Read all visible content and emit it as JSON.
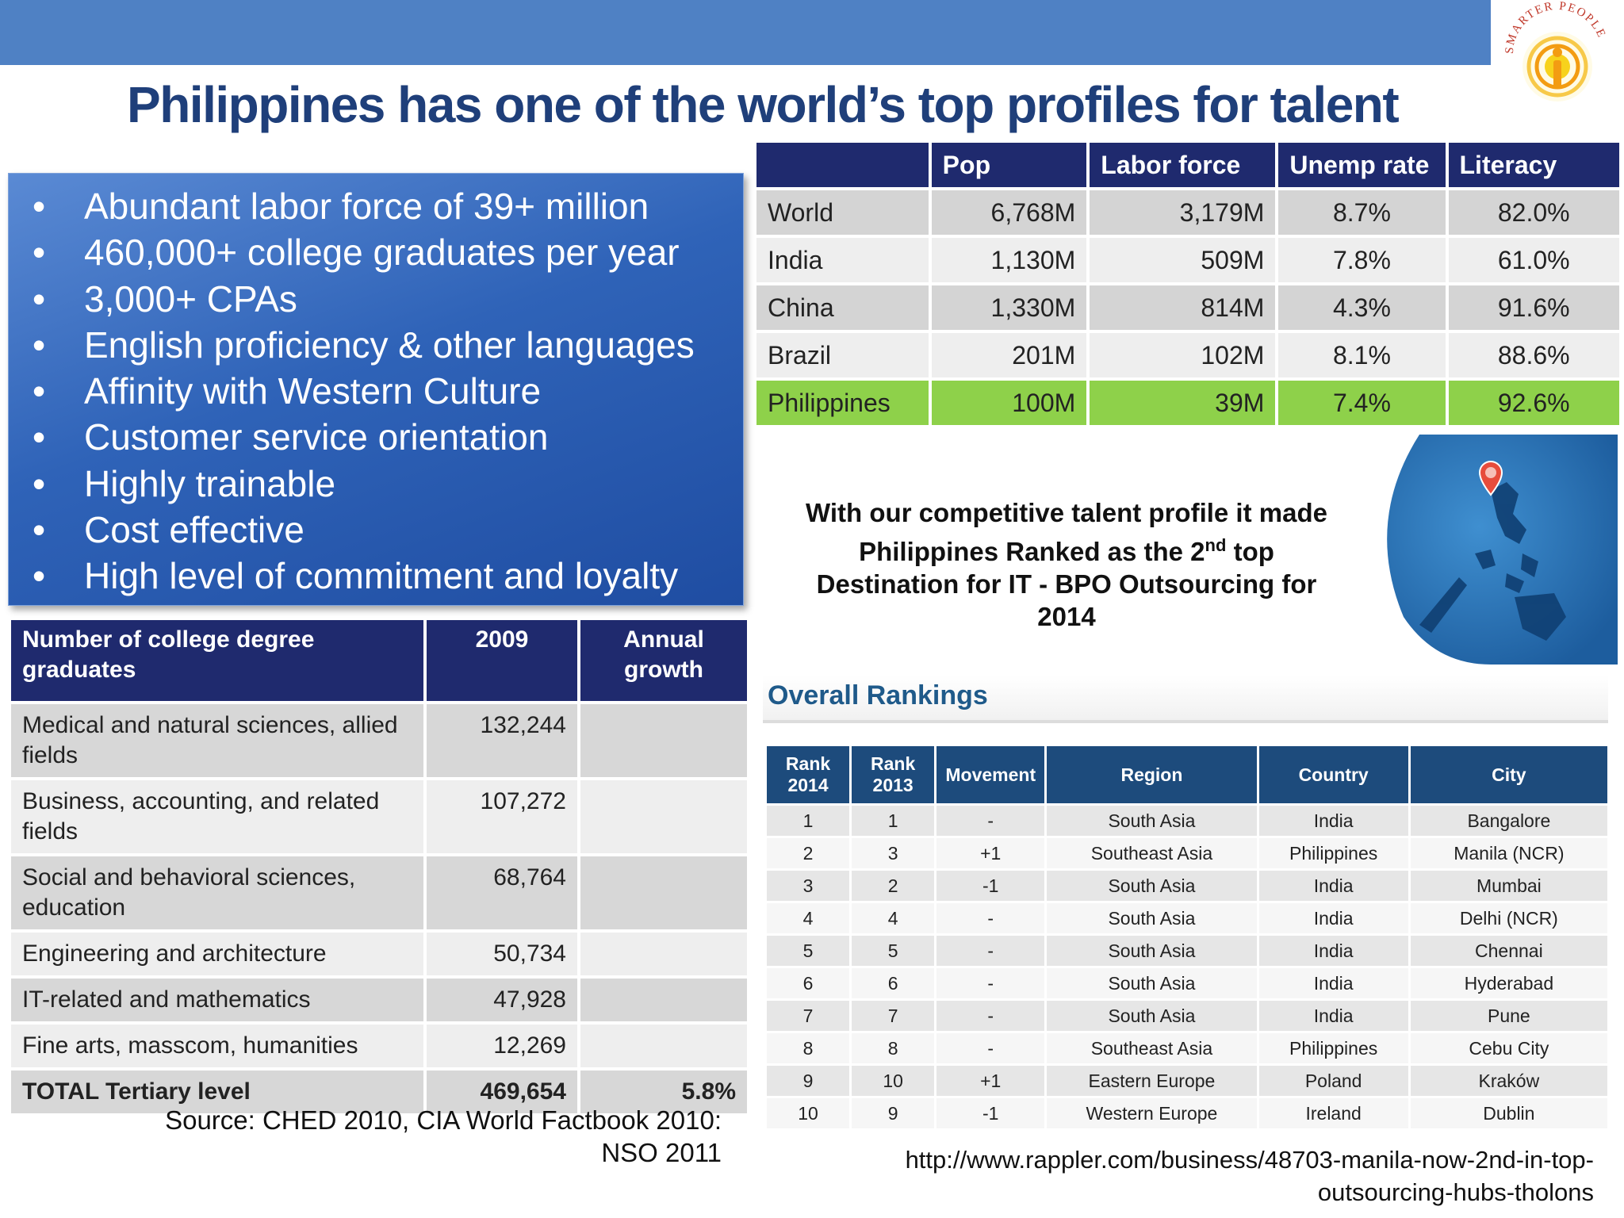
{
  "header": {
    "title": "Philippines has one of the world’s top profiles for talent"
  },
  "logo": {
    "text": "SMARTER PEOPLE",
    "icon": "lightbulb-info-icon",
    "colors": {
      "ring": "#f39c12",
      "center": "#f7d21c",
      "text": "#c0392b"
    }
  },
  "bullets": {
    "marker": "•",
    "items": [
      "Abundant labor force of 39+ million",
      "460,000+ college graduates per year",
      "3,000+ CPAs",
      "English proficiency & other languages",
      "Affinity with Western Culture",
      "Customer service orientation",
      "Highly trainable",
      "Cost effective",
      "High level of commitment and loyalty"
    ]
  },
  "country_table": {
    "headers": [
      "",
      "Pop",
      "Labor force",
      "Unemp rate",
      "Literacy"
    ],
    "rows": [
      [
        "World",
        "6,768M",
        "3,179M",
        "8.7%",
        "82.0%"
      ],
      [
        "India",
        "1,130M",
        "509M",
        "7.8%",
        "61.0%"
      ],
      [
        "China",
        "1,330M",
        "814M",
        "4.3%",
        "91.6%"
      ],
      [
        "Brazil",
        "201M",
        "102M",
        "8.1%",
        "88.6%"
      ],
      [
        "Philippines",
        "100M",
        "39M",
        "7.4%",
        "92.6%"
      ]
    ],
    "highlight_color": "#8ed14a"
  },
  "callout": {
    "line1": "With our competitive talent profile it made",
    "line2_pre": "Philippines Ranked as the 2",
    "line2_sup": "nd",
    "line2_post": " top",
    "line3": "Destination for IT - BPO Outsourcing for",
    "line4": "2014"
  },
  "map": {
    "icon": "philippines-map-pin-icon"
  },
  "rankings": {
    "title": "Overall Rankings",
    "headers": [
      "Rank 2014",
      "Rank 2013",
      "Movement",
      "Region",
      "Country",
      "City"
    ],
    "rows": [
      [
        "1",
        "1",
        "-",
        "South Asia",
        "India",
        "Bangalore"
      ],
      [
        "2",
        "3",
        "+1",
        "Southeast Asia",
        "Philippines",
        "Manila (NCR)"
      ],
      [
        "3",
        "2",
        "-1",
        "South Asia",
        "India",
        "Mumbai"
      ],
      [
        "4",
        "4",
        "-",
        "South Asia",
        "India",
        "Delhi (NCR)"
      ],
      [
        "5",
        "5",
        "-",
        "South Asia",
        "India",
        "Chennai"
      ],
      [
        "6",
        "6",
        "-",
        "South Asia",
        "India",
        "Hyderabad"
      ],
      [
        "7",
        "7",
        "-",
        "South Asia",
        "India",
        "Pune"
      ],
      [
        "8",
        "8",
        "-",
        "Southeast Asia",
        "Philippines",
        "Cebu City"
      ],
      [
        "9",
        "10",
        "+1",
        "Eastern Europe",
        "Poland",
        "Kraków"
      ],
      [
        "10",
        "9",
        "-1",
        "Western Europe",
        "Ireland",
        "Dublin"
      ]
    ]
  },
  "graduates_table": {
    "headers": [
      "Number of college degree graduates",
      "2009",
      "Annual growth"
    ],
    "rows": [
      [
        "Medical and natural sciences, allied fields",
        "132,244",
        ""
      ],
      [
        "Business, accounting, and related fields",
        "107,272",
        ""
      ],
      [
        "Social and behavioral sciences, education",
        "68,764",
        ""
      ],
      [
        "Engineering and architecture",
        "50,734",
        ""
      ],
      [
        "IT-related and mathematics",
        "47,928",
        ""
      ],
      [
        "Fine arts, masscom, humanities",
        "12,269",
        ""
      ]
    ],
    "total": [
      "TOTAL Tertiary level",
      "469,654",
      "5.8%"
    ]
  },
  "source": {
    "line1": "Source: CHED 2010, CIA World Factbook 2010:",
    "line2": "NSO 2011"
  },
  "url": {
    "line1": "http://www.rappler.com/business/48703-manila-now-2nd-in-top-",
    "line2": "outsourcing-hubs-tholons"
  }
}
